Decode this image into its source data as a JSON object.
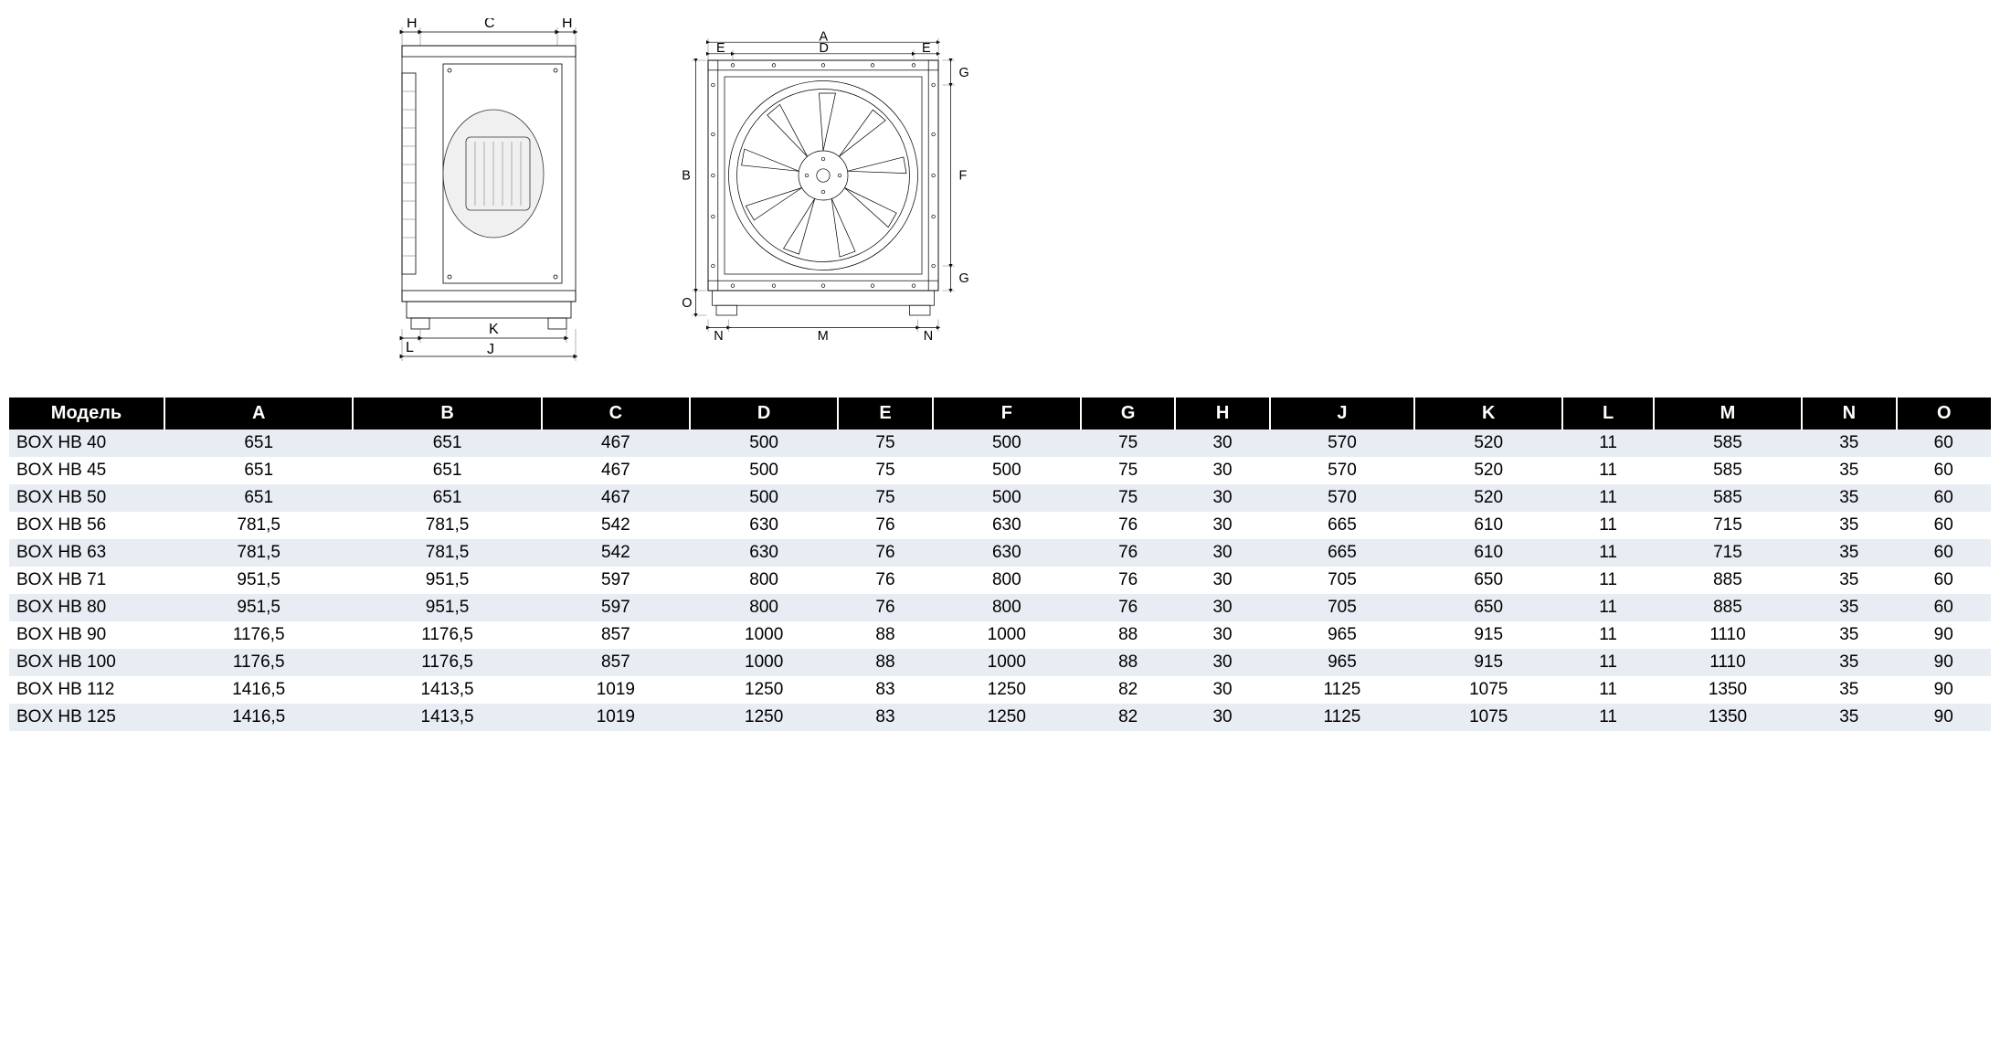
{
  "diagrams": {
    "side_view": {
      "dim_labels": {
        "H_left": "H",
        "C": "C",
        "H_right": "H",
        "L": "L",
        "K": "K",
        "J": "J"
      }
    },
    "front_view": {
      "dim_labels": {
        "A": "A",
        "E_left": "E",
        "D": "D",
        "E_right": "E",
        "G_top": "G",
        "F": "F",
        "G_bottom": "G",
        "B": "B",
        "O": "O",
        "N_left": "N",
        "M": "M",
        "N_right": "N"
      }
    }
  },
  "table": {
    "columns": [
      "Модель",
      "A",
      "B",
      "C",
      "D",
      "E",
      "F",
      "G",
      "H",
      "J",
      "K",
      "L",
      "M",
      "N",
      "O"
    ],
    "header_bg": "#000000",
    "header_color": "#ffffff",
    "row_odd_bg": "#e8edf3",
    "row_even_bg": "#ffffff",
    "rows": [
      [
        "BOX HB 40",
        "651",
        "651",
        "467",
        "500",
        "75",
        "500",
        "75",
        "30",
        "570",
        "520",
        "11",
        "585",
        "35",
        "60"
      ],
      [
        "BOX HB 45",
        "651",
        "651",
        "467",
        "500",
        "75",
        "500",
        "75",
        "30",
        "570",
        "520",
        "11",
        "585",
        "35",
        "60"
      ],
      [
        "BOX HB 50",
        "651",
        "651",
        "467",
        "500",
        "75",
        "500",
        "75",
        "30",
        "570",
        "520",
        "11",
        "585",
        "35",
        "60"
      ],
      [
        "BOX HB 56",
        "781,5",
        "781,5",
        "542",
        "630",
        "76",
        "630",
        "76",
        "30",
        "665",
        "610",
        "11",
        "715",
        "35",
        "60"
      ],
      [
        "BOX HB 63",
        "781,5",
        "781,5",
        "542",
        "630",
        "76",
        "630",
        "76",
        "30",
        "665",
        "610",
        "11",
        "715",
        "35",
        "60"
      ],
      [
        "BOX HB 71",
        "951,5",
        "951,5",
        "597",
        "800",
        "76",
        "800",
        "76",
        "30",
        "705",
        "650",
        "11",
        "885",
        "35",
        "60"
      ],
      [
        "BOX HB 80",
        "951,5",
        "951,5",
        "597",
        "800",
        "76",
        "800",
        "76",
        "30",
        "705",
        "650",
        "11",
        "885",
        "35",
        "60"
      ],
      [
        "BOX HB 90",
        "1176,5",
        "1176,5",
        "857",
        "1000",
        "88",
        "1000",
        "88",
        "30",
        "965",
        "915",
        "11",
        "1110",
        "35",
        "90"
      ],
      [
        "BOX HB 100",
        "1176,5",
        "1176,5",
        "857",
        "1000",
        "88",
        "1000",
        "88",
        "30",
        "965",
        "915",
        "11",
        "1110",
        "35",
        "90"
      ],
      [
        "BOX HB 112",
        "1416,5",
        "1413,5",
        "1019",
        "1250",
        "83",
        "1250",
        "82",
        "30",
        "1125",
        "1075",
        "11",
        "1350",
        "35",
        "90"
      ],
      [
        "BOX HB 125",
        "1416,5",
        "1413,5",
        "1019",
        "1250",
        "83",
        "1250",
        "82",
        "30",
        "1125",
        "1075",
        "11",
        "1350",
        "35",
        "90"
      ]
    ]
  }
}
